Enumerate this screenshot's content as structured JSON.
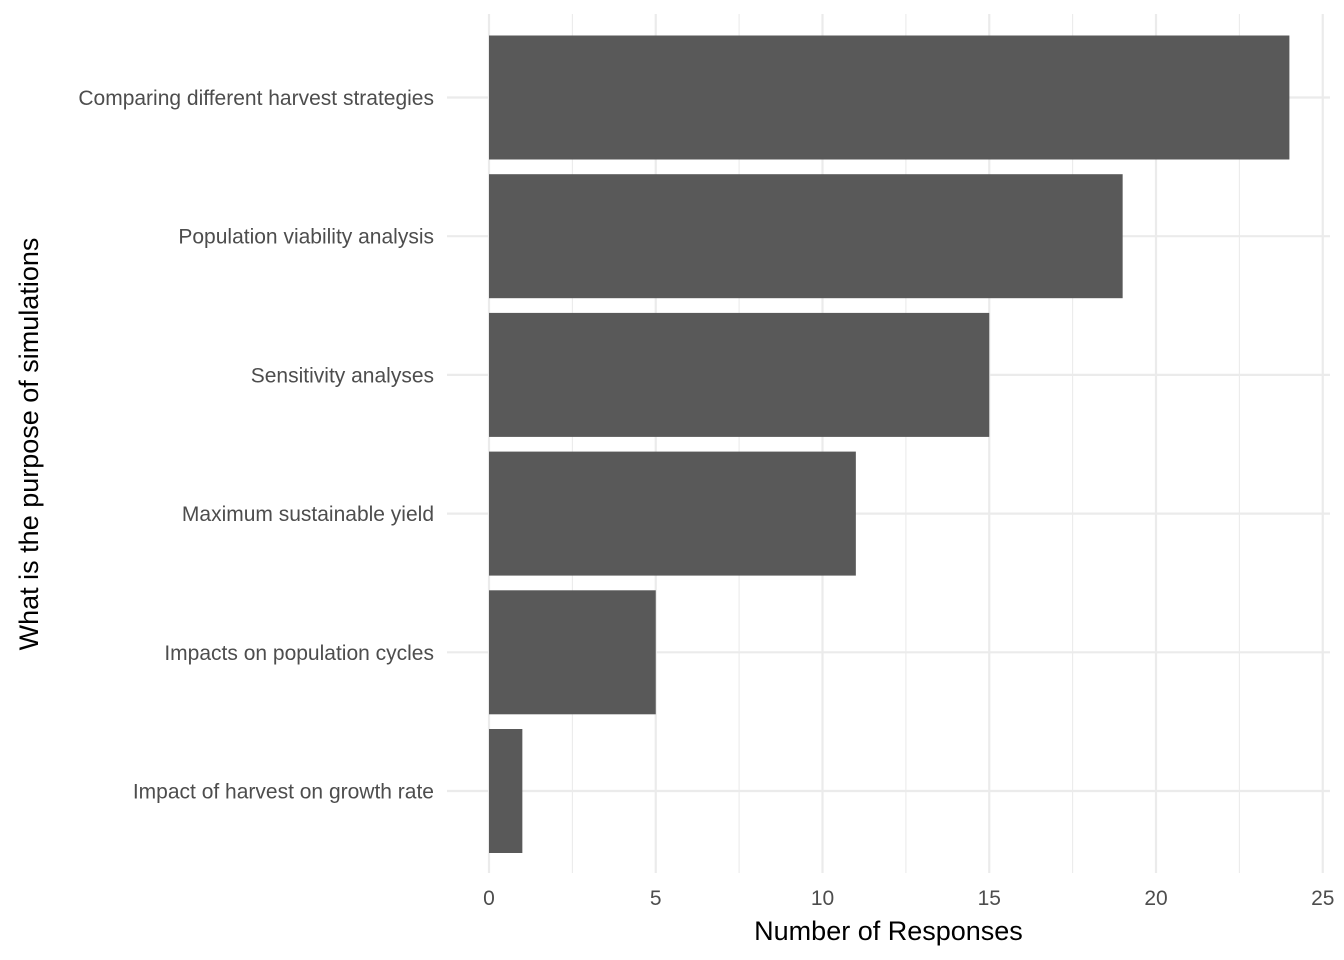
{
  "chart_data": {
    "type": "bar",
    "orientation": "horizontal",
    "xlabel": "Number of Responses",
    "ylabel": "What is the purpose of simulations",
    "categories": [
      "Comparing different harvest strategies",
      "Population viability analysis",
      "Sensitivity analyses",
      "Maximum sustainable yield",
      "Impacts on population cycles",
      "Impact of harvest on growth rate"
    ],
    "values": [
      24,
      19,
      15,
      11,
      5,
      1
    ],
    "xlim": [
      0,
      25
    ],
    "xticks": [
      0,
      5,
      10,
      15,
      20,
      25
    ],
    "grid": true,
    "legend": "none",
    "bar_color": "#595959"
  }
}
